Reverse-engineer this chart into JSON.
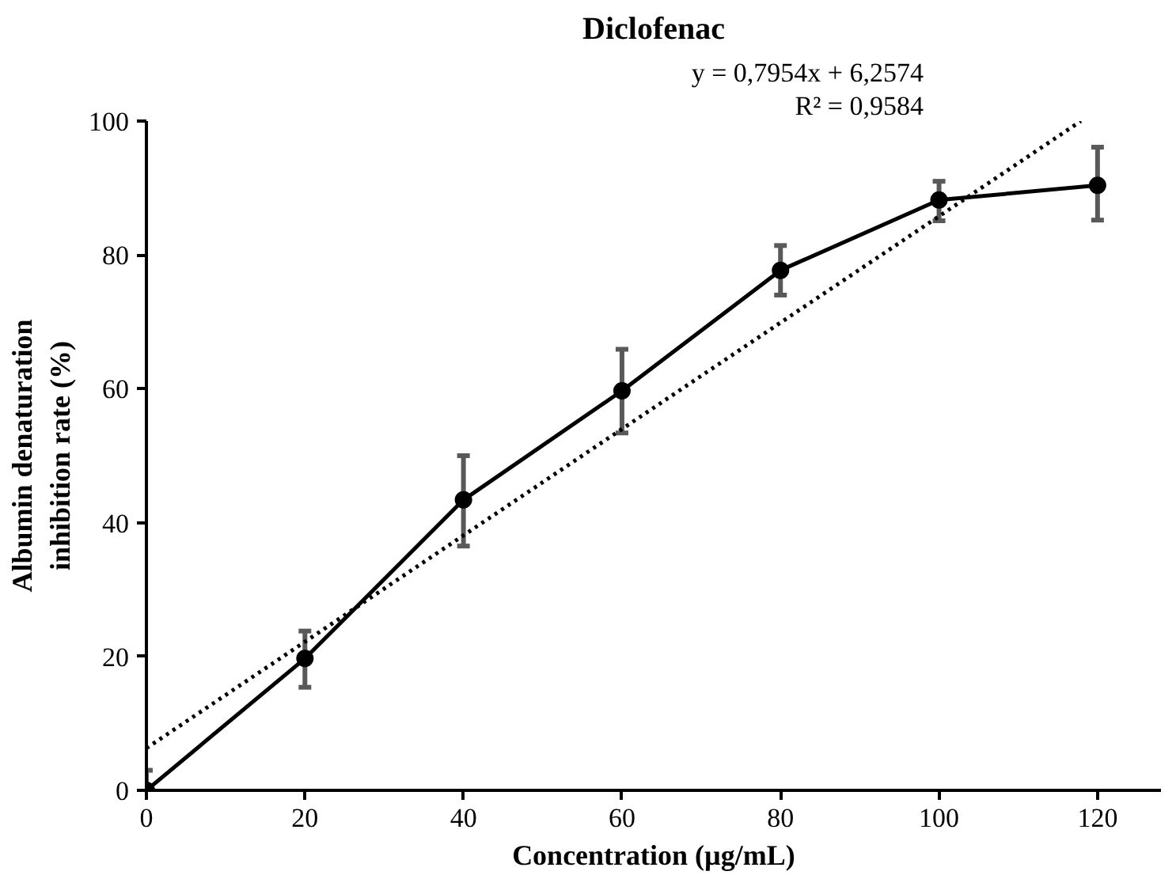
{
  "chart_data": {
    "type": "line",
    "title": "Diclofenac",
    "xlabel": "Concentration (µg/mL)",
    "ylabel": "Albumin denaturation\ninhibition rate (%)",
    "x": [
      0,
      20,
      40,
      60,
      80,
      100,
      120
    ],
    "xlim": [
      0,
      128
    ],
    "xticks": [
      0,
      20,
      40,
      60,
      80,
      100,
      120
    ],
    "ylim": [
      0,
      100
    ],
    "yticks": [
      0,
      20,
      40,
      60,
      80,
      100
    ],
    "marker": "circle",
    "grid": false,
    "series": [
      {
        "color": "#000000",
        "values": [
          0,
          19.7,
          43.4,
          59.7,
          77.7,
          88.2,
          90.4
        ],
        "errors": [
          3,
          [
            15.4,
            23.8
          ],
          [
            36.5,
            50
          ],
          [
            53.4,
            65.9
          ],
          [
            74,
            81.4
          ],
          [
            85.1,
            91
          ],
          [
            85.2,
            96.1
          ]
        ]
      },
      {
        "type": "line",
        "color": "#000000",
        "x": [
          0,
          117.9
        ],
        "values": [
          6.3,
          100
        ],
        "line_style": "dotted",
        "marker": "none"
      }
    ],
    "annotations": [
      "y = 0,7954x + 6,2574",
      "R² = 0,9584"
    ]
  }
}
